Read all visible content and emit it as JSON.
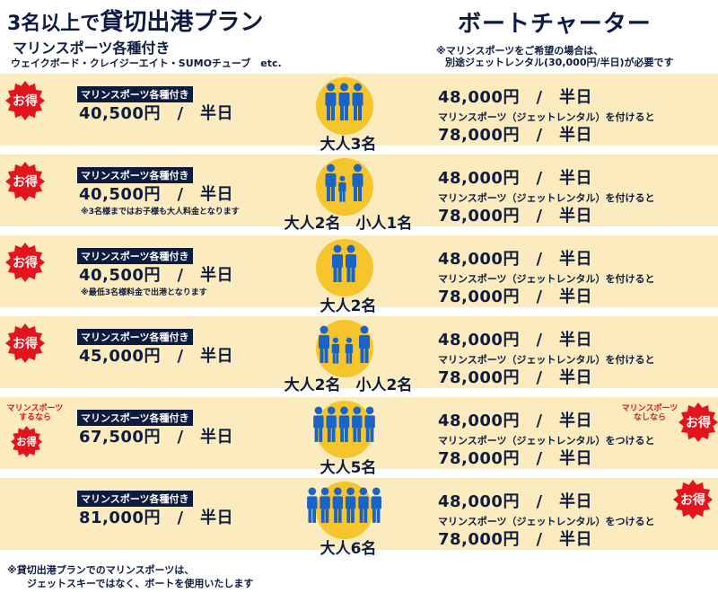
{
  "header": {
    "left_title_small": "3名以上で",
    "left_title_big": "貸切出港プラン",
    "left_sub": "マリンスポーツ各種付き",
    "left_sub2": "ウェイクボード・クレイジーエイト・SUMOチューブ　etc.",
    "right_title": "ボートチャーター",
    "right_note1": "※マリンスポーツをご希望の場合は、",
    "right_note2": "別途ジェットレンタル(30,000円/半日)が必要です"
  },
  "badge_text": "お得",
  "rows": [
    {
      "tag": "マリンスポーツ各種付き",
      "price": "40,500円　/　半日",
      "note": "",
      "label": "大人3名",
      "r1": "48,000円　/　半日",
      "r2": "マリンスポーツ（ジェットレンタル）を付けると",
      "r3": "78,000円　/　半日"
    },
    {
      "tag": "マリンスポーツ各種付き",
      "price": "40,500円　/　半日",
      "note": "※3名様まではお子様も大人料金となります",
      "label": "大人2名　小人1名",
      "r1": "48,000円　/　半日",
      "r2": "マリンスポーツ（ジェットレンタル）を付けると",
      "r3": "78,000円　/　半日"
    },
    {
      "tag": "マリンスポーツ各種付き",
      "price": "40,500円　/　半日",
      "note": "※最低3名様料金で出港となります",
      "label": "大人2名",
      "r1": "48,000円　/　半日",
      "r2": "マリンスポーツ（ジェットレンタル）を付けると",
      "r3": "78,000円　/　半日"
    },
    {
      "tag": "マリンスポーツ各種付き",
      "price": "45,000円　/　半日",
      "note": "",
      "label": "大人2名　小人2名",
      "r1": "48,000円　/　半日",
      "r2": "マリンスポーツ（ジェットレンタル）を付けると",
      "r3": "78,000円　/　半日"
    },
    {
      "tag": "マリンスポーツ各種付き",
      "price": "67,500円　/　半日",
      "note": "",
      "label": "大人5名",
      "r1": "48,000円　/　半日",
      "r2": "マリンスポーツ（ジェットレンタル）をつけると",
      "r3": "78,000円　/　半日"
    },
    {
      "tag": "マリンスポーツ各種付き",
      "price": "81,000円　/　半日",
      "note": "",
      "label": "大人6名",
      "r1": "48,000円　/　半日",
      "r2": "マリンスポーツ（ジェットレンタル）をつけると",
      "r3": "78,000円　/　半日"
    }
  ],
  "row5_left_red": "マリンスポーツ\nするなら",
  "row5_right_red": "マリンスポーツ\nなしなら",
  "footer": {
    "line1": "※貸切出港プランでのマリンスポーツは、",
    "line2": "ジェットスキーではなく、ボートを使用いたします"
  },
  "colors": {
    "navy": "#0d1b3e",
    "row_bg": "#fcebbf",
    "circle": "#f6c42b",
    "people": "#1a63c7",
    "badge": "#e3141b"
  }
}
